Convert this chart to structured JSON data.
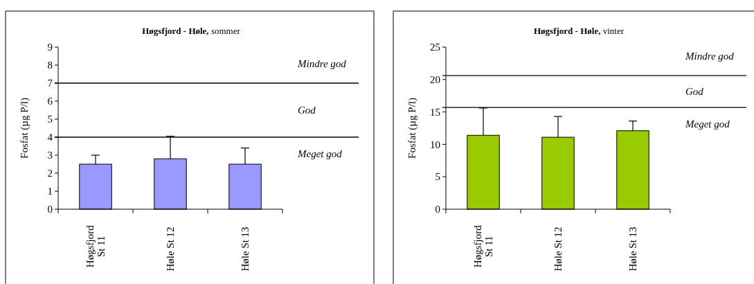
{
  "chart_data": [
    {
      "type": "bar",
      "title": "Høgsfjord - Høle, sommer",
      "ylabel": "Fosfat (µg P/l)",
      "categories": [
        "Høgsfjord St 11",
        "Høle St 12",
        "Høle St 13"
      ],
      "values": [
        2.5,
        2.8,
        2.5
      ],
      "errors": [
        [
          2.5,
          3.0
        ],
        [
          2.8,
          4.05
        ],
        [
          2.5,
          3.4
        ]
      ],
      "color": "#9999ff",
      "ylim": [
        0,
        9
      ],
      "yticks": [
        0,
        1,
        2,
        3,
        4,
        5,
        6,
        7,
        8,
        9
      ],
      "grid": false,
      "ref_lines": [
        {
          "axis": "y",
          "value": 7,
          "color": "#000000"
        },
        {
          "axis": "y",
          "value": 4,
          "color": "#000000"
        }
      ],
      "annotations": [
        "Mindre god",
        "God",
        "Meget god"
      ]
    },
    {
      "type": "bar",
      "title": "Høgsfjord - Høle, vinter",
      "ylabel": "Fosfat (µg P/l)",
      "categories": [
        "Høgsfjord St 11",
        "Høle St 12",
        "Høle St 13"
      ],
      "values": [
        11.4,
        11.1,
        12.1
      ],
      "errors": [
        [
          11.4,
          15.6
        ],
        [
          11.1,
          14.3
        ],
        [
          12.1,
          13.6
        ]
      ],
      "color": "#99cc00",
      "ylim": [
        0,
        25
      ],
      "yticks": [
        0,
        5,
        10,
        15,
        20,
        25
      ],
      "grid": false,
      "ref_lines": [
        {
          "axis": "y",
          "value": 20.6,
          "color": "#000000"
        },
        {
          "axis": "y",
          "value": 15.7,
          "color": "#000000"
        }
      ],
      "annotations": [
        "Mindre god",
        "God",
        "Meget god"
      ]
    }
  ]
}
